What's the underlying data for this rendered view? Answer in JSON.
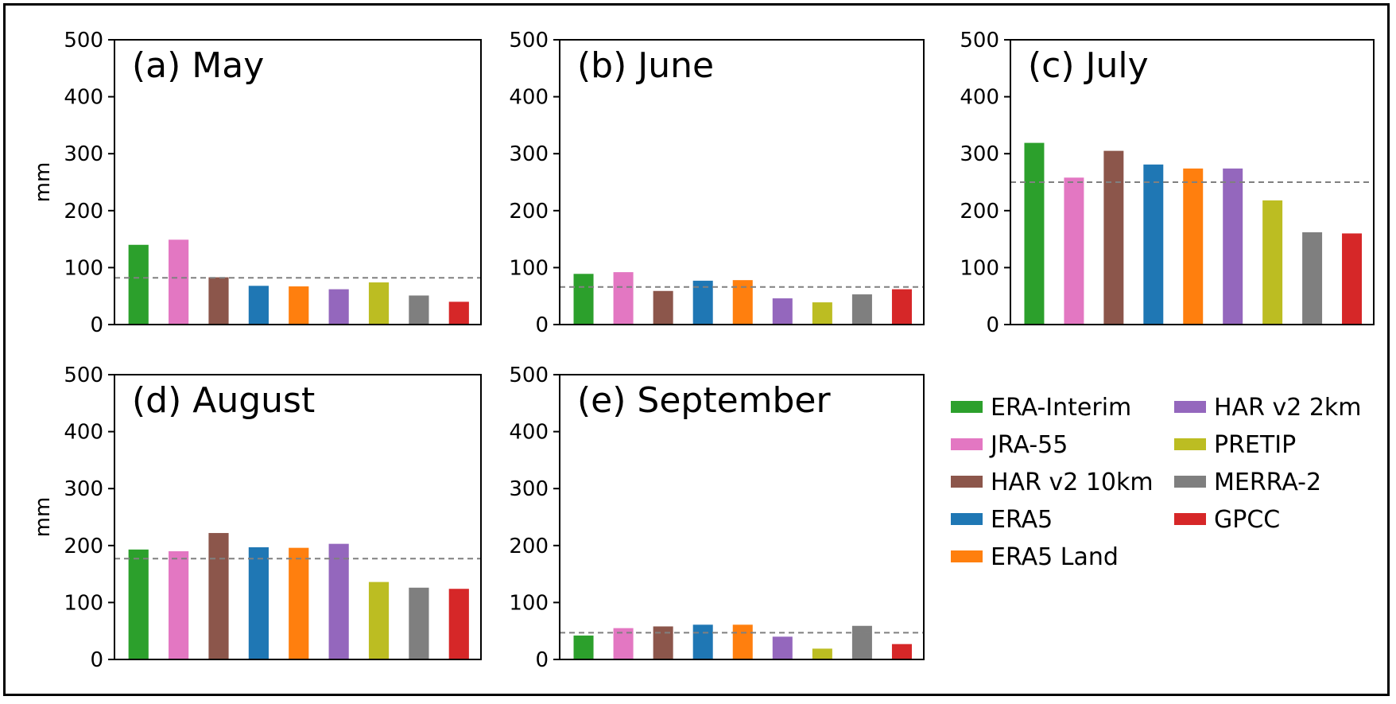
{
  "chart_data": {
    "type": "bar",
    "ylabel": "mm",
    "ylim": [
      0,
      500
    ],
    "yticks": [
      "0",
      "100",
      "200",
      "300",
      "400",
      "500"
    ],
    "grid": false,
    "legend_placement": "bottom-right",
    "categories": [
      "ERA-Interim",
      "JRA-55",
      "HAR v2 10km",
      "ERA5",
      "ERA5 Land",
      "HAR v2 2km",
      "PRETIP",
      "MERRA-2",
      "GPCC"
    ],
    "colors": [
      "#2ca02c",
      "#e377c2",
      "#8c564b",
      "#1f77b4",
      "#ff7f0e",
      "#9467bd",
      "#bcbd22",
      "#7f7f7f",
      "#d62728"
    ],
    "reference_line_color": "#808080",
    "panels": [
      {
        "title": "(a) May",
        "values": [
          140,
          149,
          83,
          68,
          67,
          62,
          74,
          51,
          40
        ],
        "reference": 82
      },
      {
        "title": "(b) June",
        "values": [
          89,
          92,
          59,
          77,
          78,
          46,
          39,
          53,
          62
        ],
        "reference": 66
      },
      {
        "title": "(c) July",
        "values": [
          319,
          258,
          305,
          281,
          274,
          274,
          218,
          162,
          160
        ],
        "reference": 250
      },
      {
        "title": "(d) August",
        "values": [
          193,
          190,
          222,
          197,
          196,
          203,
          136,
          126,
          124
        ],
        "reference": 177
      },
      {
        "title": "(e) September",
        "values": [
          42,
          55,
          58,
          61,
          61,
          40,
          19,
          59,
          27
        ],
        "reference": 47
      }
    ],
    "legend": {
      "entries": [
        "ERA-Interim",
        "JRA-55",
        "HAR v2 10km",
        "ERA5",
        "ERA5 Land",
        "HAR v2 2km",
        "PRETIP",
        "MERRA-2",
        "GPCC"
      ]
    }
  }
}
